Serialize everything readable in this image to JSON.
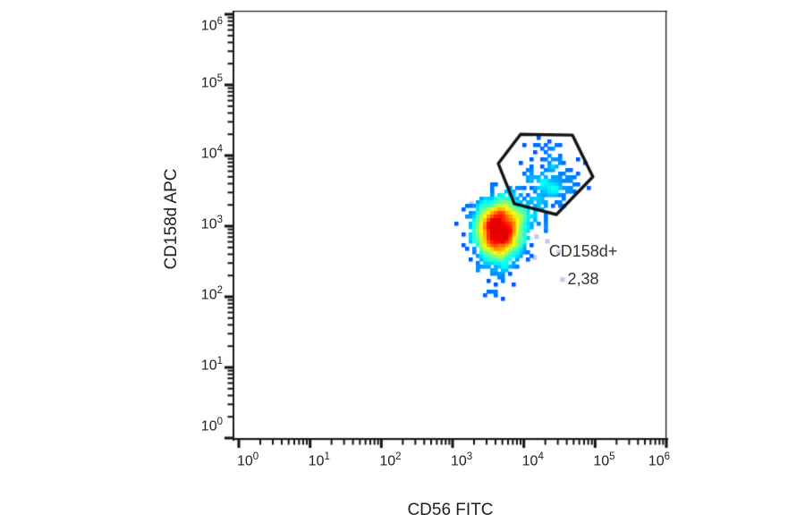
{
  "figure": {
    "background": "#ffffff"
  },
  "chart_data": {
    "type": "scatter",
    "subtype": "flow-cytometry-pseudocolor-density-dot-plot",
    "title": "",
    "xlabel": "CD56 FITC",
    "ylabel": "CD158d APC",
    "xscale": "log",
    "yscale": "log",
    "xlim": [
      1,
      1000000
    ],
    "ylim": [
      1,
      1000000
    ],
    "grid": false,
    "legend": false,
    "colormap": "jet",
    "tick_base": "10",
    "x_tick_exponents": [
      0,
      1,
      2,
      3,
      4,
      5,
      6
    ],
    "y_tick_exponents": [
      0,
      1,
      2,
      3,
      4,
      5,
      6
    ],
    "minor_tick_multiples": [
      2,
      3,
      4,
      5,
      6,
      7,
      8,
      9
    ],
    "gate": {
      "name": "CD158d+",
      "percent": "2,38",
      "polygon_xy": [
        [
          9000,
          20000
        ],
        [
          48000,
          19500
        ],
        [
          93000,
          5000
        ],
        [
          28600,
          1460
        ],
        [
          7350,
          2080
        ],
        [
          4370,
          7700
        ]
      ]
    },
    "populations": [
      {
        "name": "main-NK-population",
        "approx_center_xy": [
          4500,
          900
        ],
        "log10_center": [
          3.65,
          2.95
        ],
        "log10_sd": [
          0.16,
          0.2
        ],
        "events": 2400
      },
      {
        "name": "CD158d-positive-subset",
        "approx_center_xy": [
          22000,
          4000
        ],
        "log10_center": [
          4.34,
          3.6
        ],
        "log10_sd": [
          0.2,
          0.16
        ],
        "events": 150
      },
      {
        "name": "bridge-scatter",
        "approx_center_xy": [
          11000,
          1600
        ],
        "log10_center": [
          4.05,
          3.2
        ],
        "log10_sd": [
          0.17,
          0.12
        ],
        "events": 90
      },
      {
        "name": "gate-top-scatter",
        "approx_center_xy": [
          22000,
          11000
        ],
        "log10_center": [
          4.35,
          4.05
        ],
        "log10_sd": [
          0.18,
          0.12
        ],
        "events": 22
      },
      {
        "name": "low-tail-scatter",
        "approx_center_xy": [
          4700,
          160
        ],
        "log10_center": [
          3.67,
          2.2
        ],
        "log10_sd": [
          0.1,
          0.22
        ],
        "events": 20
      }
    ],
    "pale_dots_xy": [
      [
        15100,
        710
      ],
      [
        21400,
        610
      ],
      [
        31000,
        430
      ],
      [
        14200,
        360
      ],
      [
        1830,
        2080
      ],
      [
        35000,
        175
      ]
    ]
  },
  "colors": {
    "frame": "#1a1a1a",
    "tick": "#111111",
    "text": "#1f1f1f",
    "gate_stroke": "#141414",
    "gate_label_text": "#333333",
    "pale_dot": "#c3c8ec",
    "dot_blue": "#0000fa",
    "core_red": "#e60000"
  }
}
